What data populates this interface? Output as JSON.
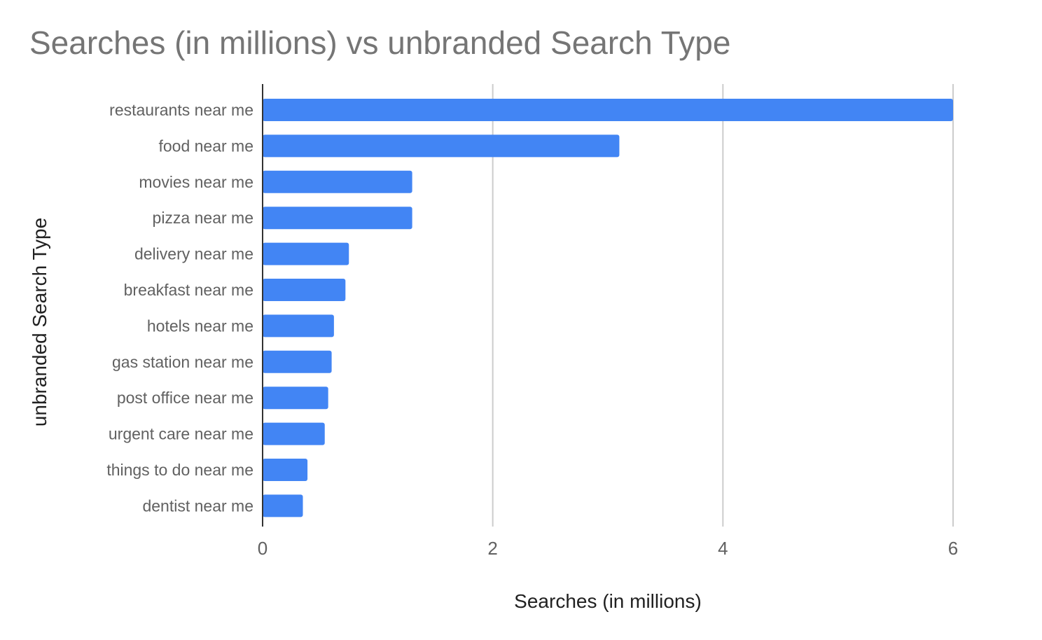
{
  "chart_data": {
    "type": "bar",
    "orientation": "horizontal",
    "title": "Searches (in millions) vs unbranded Search Type",
    "xlabel": "Searches (in millions)",
    "ylabel": "unbranded Search Type",
    "categories": [
      "restaurants near me",
      "food near me",
      "movies near me",
      "pizza near me",
      "delivery near me",
      "breakfast near me",
      "hotels near me",
      "gas station near me",
      "post office near me",
      "urgent care near me",
      "things to do near me",
      "dentist near me"
    ],
    "values": [
      6.0,
      3.1,
      1.3,
      1.3,
      0.75,
      0.72,
      0.62,
      0.6,
      0.57,
      0.54,
      0.39,
      0.35
    ],
    "xlim": [
      0,
      6
    ],
    "xticks": [
      "0",
      "2",
      "4",
      "6"
    ],
    "xtick_values": [
      0,
      2,
      4,
      6
    ],
    "grid": true,
    "legend": "none",
    "bar_color": "#4285f4",
    "gridline_color": "#cccccc",
    "axis_color": "#333333"
  }
}
